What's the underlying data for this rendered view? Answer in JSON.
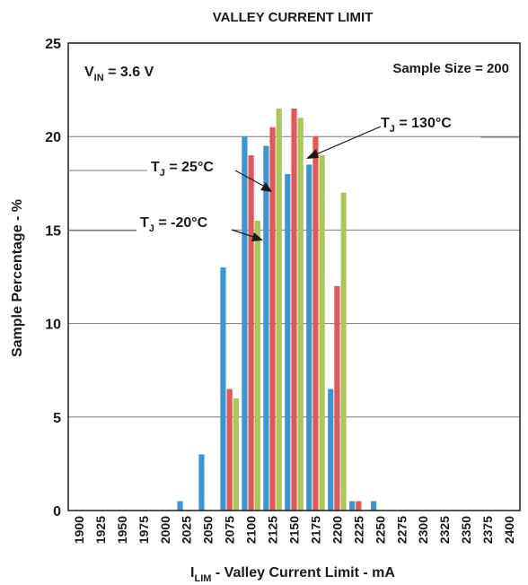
{
  "chart_data": {
    "type": "bar",
    "title": "VALLEY CURRENT LIMIT",
    "xlabel": {
      "main": "I",
      "sub": "LIM",
      "rest": " - Valley Current Limit - mA"
    },
    "ylabel": "Sample Percentage - %",
    "ylim": [
      0,
      25
    ],
    "yticks": [
      "0",
      "5",
      "10",
      "15",
      "20",
      "25"
    ],
    "categories": [
      "1900",
      "1925",
      "1950",
      "1975",
      "2000",
      "2025",
      "2050",
      "2075",
      "2100",
      "2125",
      "2150",
      "2175",
      "2200",
      "2225",
      "2250",
      "2275",
      "2300",
      "2325",
      "2350",
      "2375",
      "2400"
    ],
    "grid": "horizontal",
    "series": [
      {
        "name": "T_J = -20°C",
        "color": "#3a97d2",
        "values": [
          0,
          0,
          0,
          0,
          0,
          0.5,
          3,
          13,
          20,
          19.5,
          18,
          18.5,
          6.5,
          0.5,
          0.5,
          0,
          0,
          0,
          0,
          0,
          0
        ]
      },
      {
        "name": "T_J = 25°C",
        "color": "#e05858",
        "values": [
          0,
          0,
          0,
          0,
          0,
          0,
          0,
          6.5,
          19,
          20.5,
          21.5,
          20,
          12,
          0.5,
          0,
          0,
          0,
          0,
          0,
          0,
          0
        ]
      },
      {
        "name": "T_J = 130°C",
        "color": "#a9c75a",
        "values": [
          0,
          0,
          0,
          0,
          0,
          0,
          0,
          6,
          15.5,
          21.5,
          21,
          19,
          17,
          0,
          0,
          0,
          0,
          0,
          0,
          0,
          0
        ]
      }
    ],
    "annotations": {
      "vin": {
        "main": "V",
        "sub": "IN",
        "rest": " = 3.6 V"
      },
      "sample_size": "Sample Size = 200",
      "t130": {
        "main": "T",
        "sub": "J",
        "rest": " = 130°C"
      },
      "t25": {
        "main": "T",
        "sub": "J",
        "rest": " = 25°C"
      },
      "tm20": {
        "main": "T",
        "sub": "J",
        "rest": " = -20°C"
      }
    }
  }
}
